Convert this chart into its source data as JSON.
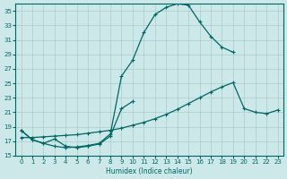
{
  "xlabel": "Humidex (Indice chaleur)",
  "bg_color": "#cce8e8",
  "grid_color": "#aacccc",
  "line_color": "#006666",
  "xlim": [
    -0.5,
    23.5
  ],
  "ylim": [
    15,
    36
  ],
  "yticks": [
    15,
    17,
    19,
    21,
    23,
    25,
    27,
    29,
    31,
    33,
    35
  ],
  "xticks": [
    0,
    1,
    2,
    3,
    4,
    5,
    6,
    7,
    8,
    9,
    10,
    11,
    12,
    13,
    14,
    15,
    16,
    17,
    18,
    19,
    20,
    21,
    22,
    23
  ],
  "curve1_x": [
    0,
    1,
    2,
    3,
    4,
    5,
    6,
    7,
    8,
    9,
    10,
    11,
    12,
    13,
    14,
    15,
    16,
    17,
    18,
    19
  ],
  "curve1_y": [
    18.5,
    17.2,
    16.7,
    16.3,
    16.1,
    16.2,
    16.4,
    16.7,
    18.0,
    26.0,
    28.2,
    32.0,
    34.5,
    35.5,
    36.0,
    35.8,
    33.5,
    31.5,
    30.0,
    29.3
  ],
  "curve2_x": [
    0,
    1,
    2,
    3,
    4,
    5,
    6,
    7,
    8,
    9,
    10
  ],
  "curve2_y": [
    18.5,
    17.2,
    16.7,
    17.3,
    16.3,
    16.1,
    16.3,
    16.6,
    17.7,
    21.5,
    22.5
  ],
  "curve3_x": [
    0,
    1,
    2,
    3,
    4,
    5,
    6,
    7,
    8,
    9,
    10,
    11,
    12,
    13,
    14,
    15,
    16,
    17,
    18,
    19,
    20,
    21,
    22,
    23
  ],
  "curve3_y": [
    17.5,
    17.5,
    17.6,
    17.7,
    17.8,
    17.9,
    18.1,
    18.3,
    18.5,
    18.8,
    19.2,
    19.6,
    20.1,
    20.7,
    21.4,
    22.2,
    23.0,
    23.8,
    24.5,
    25.1,
    21.5,
    21.0,
    20.8,
    21.3
  ]
}
